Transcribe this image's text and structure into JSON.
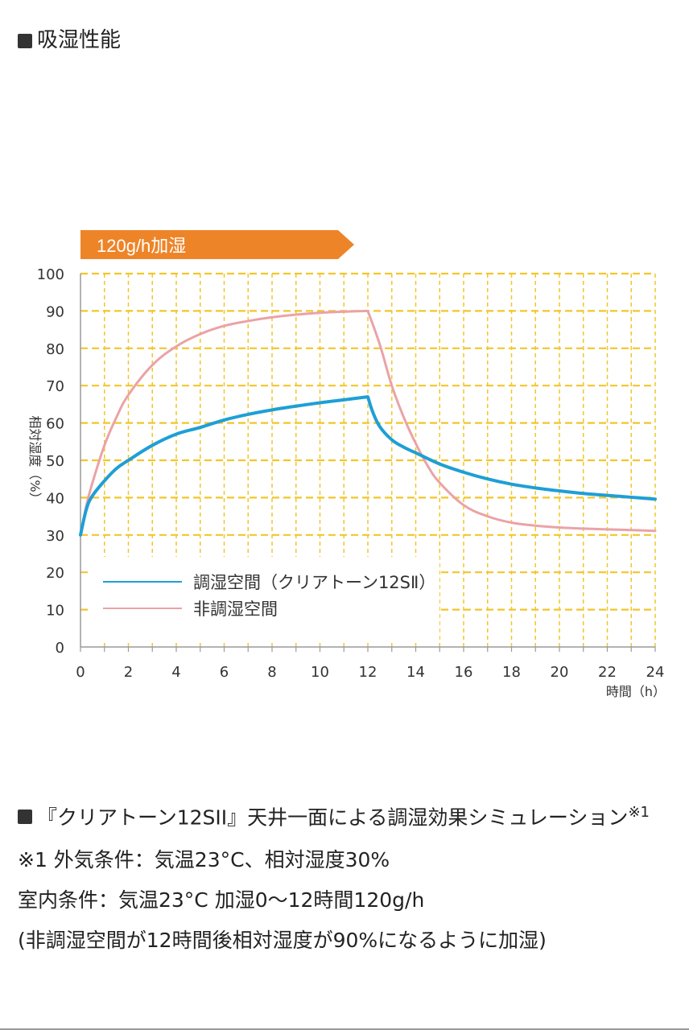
{
  "heading": "吸湿性能",
  "chart_data": {
    "type": "line",
    "banner": "120g/h加湿",
    "ylabel": "相対湿度（%）",
    "xlabel": "時間（h）",
    "xlim": [
      0,
      24
    ],
    "ylim": [
      0,
      100
    ],
    "x_ticks": [
      0,
      2,
      4,
      6,
      8,
      10,
      12,
      14,
      16,
      18,
      20,
      22,
      24
    ],
    "y_ticks": [
      0,
      10,
      20,
      30,
      40,
      50,
      60,
      70,
      80,
      90,
      100
    ],
    "grid": true,
    "legend_position": "bottom-left",
    "series": [
      {
        "name": "調湿空間（クリアトーン12SⅡ）",
        "color": "#1e9fd6",
        "x": [
          0,
          0.25,
          0.5,
          1,
          1.5,
          2,
          3,
          4,
          5,
          6,
          7,
          8,
          9,
          10,
          11,
          12,
          12.2,
          12.5,
          13,
          13.5,
          14,
          15,
          16,
          17,
          18,
          19,
          20,
          21,
          22,
          23,
          24
        ],
        "y": [
          30,
          37,
          40.5,
          44.5,
          47.8,
          50,
          54,
          57,
          58.8,
          60.8,
          62.3,
          63.5,
          64.5,
          65.4,
          66.2,
          67,
          63,
          59,
          55.5,
          53.5,
          52,
          49,
          46.8,
          45,
          43.6,
          42.6,
          41.8,
          41.1,
          40.6,
          40.1,
          39.6
        ]
      },
      {
        "name": "非調湿空間",
        "color": "#eaa3a6",
        "x": [
          0,
          0.25,
          0.5,
          1,
          1.5,
          2,
          3,
          4,
          5,
          6,
          7,
          8,
          9,
          10,
          11,
          12,
          12.5,
          13,
          13.5,
          14,
          14.5,
          15,
          16,
          17,
          18,
          19,
          20,
          21,
          22,
          23,
          24
        ],
        "y": [
          30,
          38,
          44,
          54,
          61.5,
          67.5,
          75.5,
          80.5,
          83.8,
          86,
          87.3,
          88.3,
          89,
          89.5,
          89.8,
          90,
          81,
          70,
          61.5,
          54.5,
          48.5,
          44,
          38,
          35,
          33.3,
          32.5,
          32,
          31.7,
          31.5,
          31.3,
          31.1
        ]
      }
    ]
  },
  "notes": {
    "caption": "『クリアトーン12SII』天井一面による調湿効果シミュレーション",
    "caption_mark": "※1",
    "lines": [
      "※1 外気条件：気温23°C、相対湿度30%",
      "室内条件：気温23°C 加湿0〜12時間120g/h",
      "(非調湿空間が12時間後相対湿度が90%になるように加湿)"
    ]
  },
  "colors": {
    "banner": "#ee8428",
    "grid": "#f2c62a",
    "axis": "#9a9a9a"
  }
}
